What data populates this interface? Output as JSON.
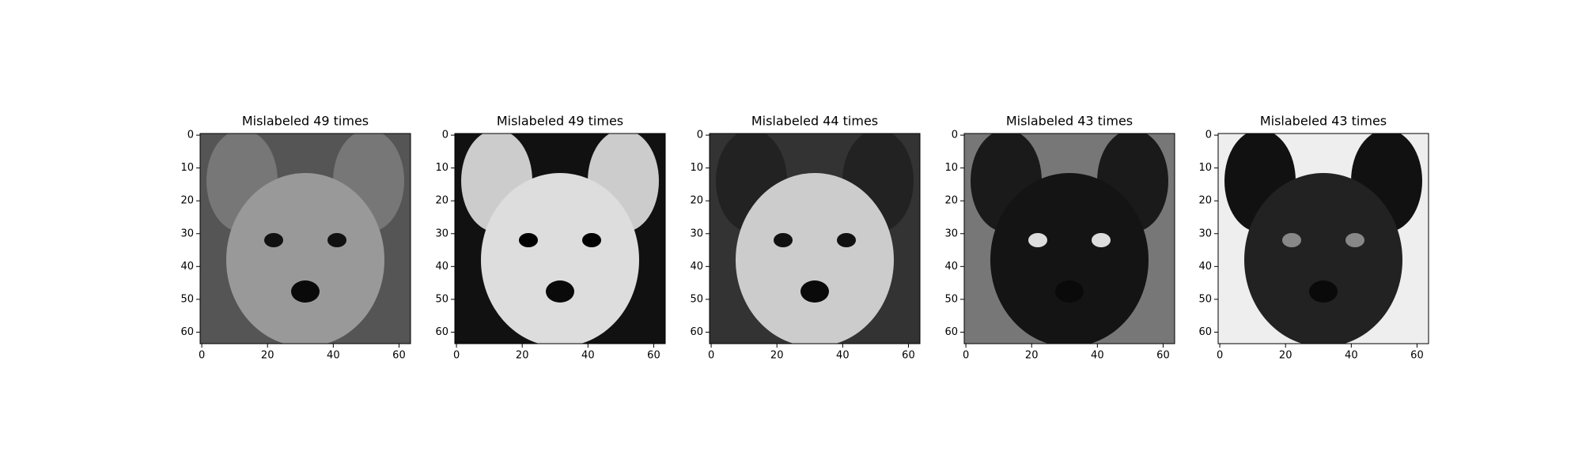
{
  "chart_data": [
    {
      "type": "image",
      "title": "Mislabeled 49 times",
      "xlim": [
        -0.5,
        63.5
      ],
      "ylim": [
        63.5,
        -0.5
      ],
      "xticks": [
        0,
        20,
        40,
        60
      ],
      "yticks": [
        0,
        10,
        20,
        30,
        40,
        50,
        60
      ]
    },
    {
      "type": "image",
      "title": "Mislabeled 49 times",
      "xlim": [
        -0.5,
        63.5
      ],
      "ylim": [
        63.5,
        -0.5
      ],
      "xticks": [
        0,
        20,
        40,
        60
      ],
      "yticks": [
        0,
        10,
        20,
        30,
        40,
        50,
        60
      ]
    },
    {
      "type": "image",
      "title": "Mislabeled 44 times",
      "xlim": [
        -0.5,
        63.5
      ],
      "ylim": [
        63.5,
        -0.5
      ],
      "xticks": [
        0,
        20,
        40,
        60
      ],
      "yticks": [
        0,
        10,
        20,
        30,
        40,
        50,
        60
      ]
    },
    {
      "type": "image",
      "title": "Mislabeled 43 times",
      "xlim": [
        -0.5,
        63.5
      ],
      "ylim": [
        63.5,
        -0.5
      ],
      "xticks": [
        0,
        20,
        40,
        60
      ],
      "yticks": [
        0,
        10,
        20,
        30,
        40,
        50,
        60
      ]
    },
    {
      "type": "image",
      "title": "Mislabeled 43 times",
      "xlim": [
        -0.5,
        63.5
      ],
      "ylim": [
        63.5,
        -0.5
      ],
      "xticks": [
        0,
        20,
        40,
        60
      ],
      "yticks": [
        0,
        10,
        20,
        30,
        40,
        50,
        60
      ]
    }
  ]
}
